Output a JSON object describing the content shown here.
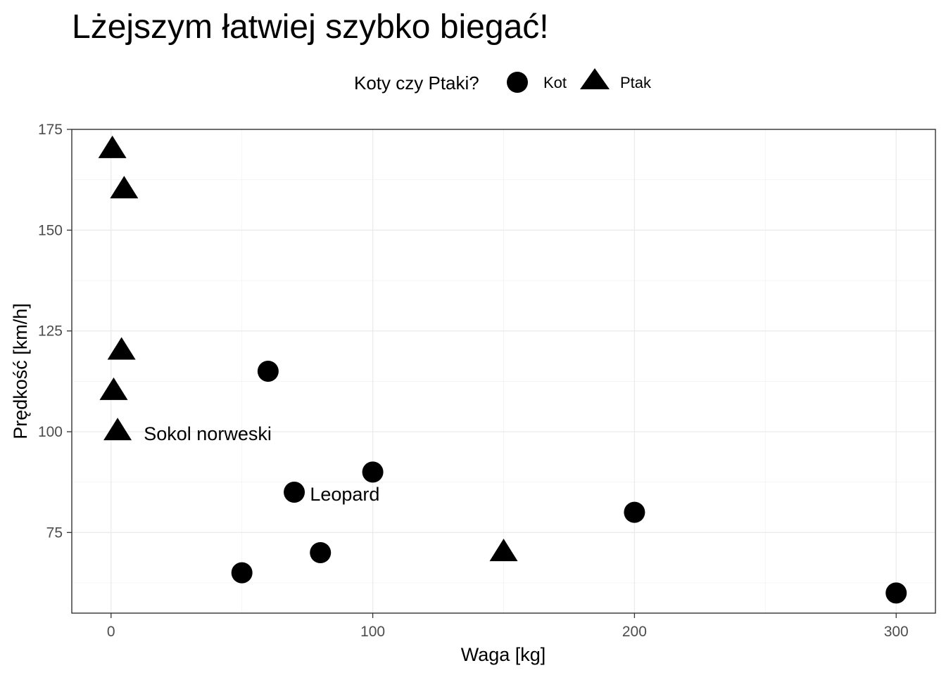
{
  "chart_data": {
    "type": "scatter",
    "title": "Lżejszym łatwiej szybko biegać!",
    "xlabel": "Waga [kg]",
    "ylabel": "Prędkość [km/h]",
    "xlim": [
      -15,
      315
    ],
    "ylim": [
      55,
      175
    ],
    "x_ticks": [
      0,
      100,
      200,
      300
    ],
    "y_ticks": [
      75,
      100,
      125,
      150,
      175
    ],
    "grid": true,
    "legend": {
      "title": "Koty czy Ptaki?",
      "position": "top",
      "entries": [
        {
          "label": "Kot",
          "shape": "circle"
        },
        {
          "label": "Ptak",
          "shape": "triangle"
        }
      ]
    },
    "series": [
      {
        "name": "Kot",
        "shape": "circle",
        "points": [
          {
            "x": 60,
            "y": 115
          },
          {
            "x": 100,
            "y": 90
          },
          {
            "x": 70,
            "y": 85
          },
          {
            "x": 80,
            "y": 70
          },
          {
            "x": 50,
            "y": 65
          },
          {
            "x": 200,
            "y": 80
          },
          {
            "x": 300,
            "y": 60
          }
        ]
      },
      {
        "name": "Ptak",
        "shape": "triangle",
        "points": [
          {
            "x": 0.5,
            "y": 170
          },
          {
            "x": 5,
            "y": 160
          },
          {
            "x": 4,
            "y": 120
          },
          {
            "x": 1,
            "y": 110
          },
          {
            "x": 2.5,
            "y": 100
          },
          {
            "x": 150,
            "y": 70
          }
        ]
      }
    ],
    "annotations": [
      {
        "text": "Sokol norweski",
        "x": 12.5,
        "y": 99.5
      },
      {
        "text": "Leopard",
        "x": 76,
        "y": 84.5
      }
    ],
    "colors": {
      "marker": "#000000",
      "grid": "#ebebeb",
      "border": "#333333",
      "tick_text": "#4d4d4d"
    }
  }
}
